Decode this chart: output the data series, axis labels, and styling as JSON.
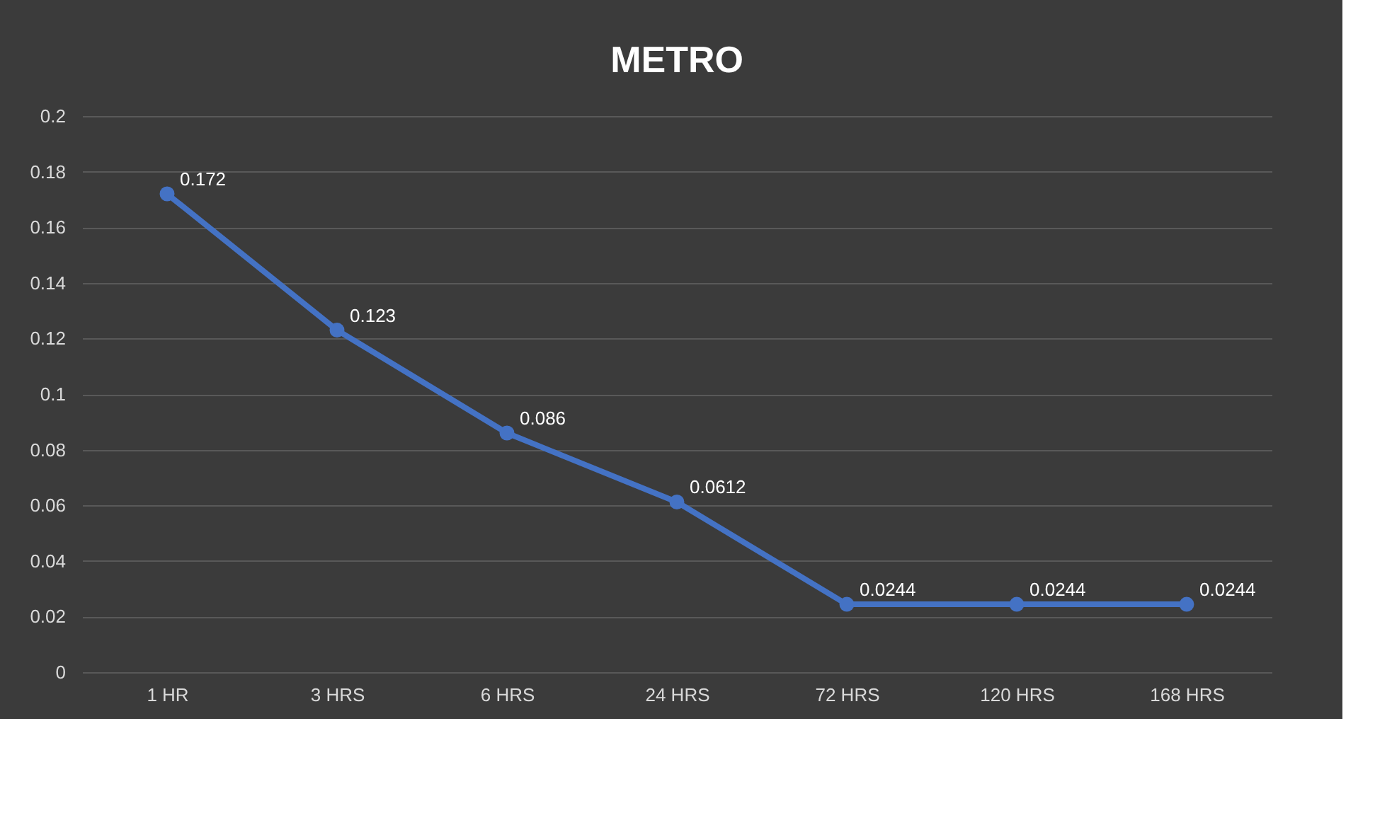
{
  "chart_data": {
    "type": "line",
    "title": "METRO",
    "categories": [
      "1 HR",
      "3 HRS",
      "6 HRS",
      "24 HRS",
      "72 HRS",
      "120 HRS",
      "168 HRS"
    ],
    "series": [
      {
        "color": "#4472c4",
        "values": [
          0.172,
          0.123,
          0.086,
          0.0612,
          0.0244,
          0.0244,
          0.0244
        ]
      }
    ],
    "ylim": [
      0,
      0.2
    ],
    "yticks": [
      0,
      0.02,
      0.04,
      0.06,
      0.08,
      0.1,
      0.12,
      0.14,
      0.16,
      0.18,
      0.2
    ],
    "grid": "y",
    "marker": "circle",
    "line_style": "solid",
    "data_labels": true
  }
}
